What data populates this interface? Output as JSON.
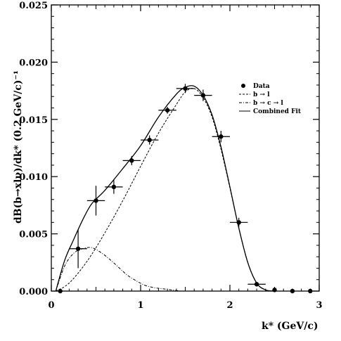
{
  "chart_data": {
    "type": "scatter",
    "title": "",
    "xlabel": "k* (GeV/c)",
    "ylabel": "dB(b→xlν)/dk* (0.2 GeV/c)⁻¹",
    "xlim": [
      0,
      3
    ],
    "ylim": [
      0,
      0.025
    ],
    "x_ticks": [
      0,
      1,
      2,
      3
    ],
    "x_tick_labels": [
      "0",
      "1",
      "2",
      "3"
    ],
    "y_ticks": [
      0,
      0.005,
      0.01,
      0.015,
      0.02,
      0.025
    ],
    "y_tick_labels": [
      "0.000",
      "0.005",
      "0.010",
      "0.015",
      "0.020",
      "0.025"
    ],
    "grid": false,
    "legend_position": "right",
    "series": [
      {
        "name": "Data",
        "style": "points",
        "points": [
          {
            "x": 0.1,
            "y": 0.0,
            "xerr": 0.0,
            "yerr": 0.0
          },
          {
            "x": 0.3,
            "y": 0.0037,
            "xerr": 0.1,
            "yerr": 0.0017
          },
          {
            "x": 0.5,
            "y": 0.0079,
            "xerr": 0.1,
            "yerr": 0.0013
          },
          {
            "x": 0.7,
            "y": 0.0091,
            "xerr": 0.1,
            "yerr": 0.0006
          },
          {
            "x": 0.9,
            "y": 0.0114,
            "xerr": 0.1,
            "yerr": 0.0004
          },
          {
            "x": 1.1,
            "y": 0.0132,
            "xerr": 0.1,
            "yerr": 0.0004
          },
          {
            "x": 1.3,
            "y": 0.0158,
            "xerr": 0.1,
            "yerr": 0.0003
          },
          {
            "x": 1.5,
            "y": 0.0177,
            "xerr": 0.1,
            "yerr": 0.0004
          },
          {
            "x": 1.7,
            "y": 0.0171,
            "xerr": 0.1,
            "yerr": 0.0005
          },
          {
            "x": 1.9,
            "y": 0.0135,
            "xerr": 0.1,
            "yerr": 0.0005
          },
          {
            "x": 2.1,
            "y": 0.006,
            "xerr": 0.1,
            "yerr": 0.0004
          },
          {
            "x": 2.3,
            "y": 0.0006,
            "xerr": 0.1,
            "yerr": 0.0002
          },
          {
            "x": 2.5,
            "y": 0.0001,
            "xerr": 0.0,
            "yerr": 0.0
          },
          {
            "x": 2.7,
            "y": 0.0,
            "xerr": 0.0,
            "yerr": 0.0
          },
          {
            "x": 2.9,
            "y": 0.0,
            "xerr": 0.0,
            "yerr": 0.0
          }
        ]
      },
      {
        "name": "b → l",
        "style": "dashed",
        "x": [
          0.05,
          0.2,
          0.4,
          0.6,
          0.8,
          1.0,
          1.2,
          1.4,
          1.5,
          1.6,
          1.7,
          1.8,
          1.9,
          2.0,
          2.1,
          2.2,
          2.3,
          2.4,
          2.5
        ],
        "y": [
          0.0,
          0.0007,
          0.0026,
          0.0051,
          0.0079,
          0.0109,
          0.0138,
          0.0163,
          0.0174,
          0.0177,
          0.0169,
          0.0152,
          0.0124,
          0.009,
          0.0055,
          0.0025,
          0.0007,
          0.0001,
          0.0
        ]
      },
      {
        "name": "b → c → l",
        "style": "dashdot",
        "x": [
          0.05,
          0.15,
          0.25,
          0.35,
          0.45,
          0.55,
          0.65,
          0.75,
          0.85,
          0.95,
          1.05,
          1.15,
          1.25,
          1.35,
          1.45
        ],
        "y": [
          0.0,
          0.0022,
          0.0033,
          0.0037,
          0.0038,
          0.0034,
          0.0028,
          0.0021,
          0.0014,
          0.0009,
          0.0005,
          0.0003,
          0.0002,
          0.0001,
          0.0
        ]
      },
      {
        "name": "Combined Fit",
        "style": "solid",
        "x": [
          0.05,
          0.15,
          0.25,
          0.35,
          0.45,
          0.6,
          0.8,
          1.0,
          1.2,
          1.4,
          1.5,
          1.6,
          1.7,
          1.8,
          1.9,
          2.0,
          2.1,
          2.2,
          2.3,
          2.4,
          2.5
        ],
        "y": [
          0.0,
          0.0027,
          0.0045,
          0.0062,
          0.0076,
          0.0088,
          0.0107,
          0.0127,
          0.0152,
          0.0172,
          0.0178,
          0.0179,
          0.0171,
          0.0154,
          0.0126,
          0.0091,
          0.0055,
          0.0025,
          0.0007,
          0.0001,
          0.0
        ]
      }
    ],
    "legend": [
      {
        "label": "Data",
        "marker": "dot"
      },
      {
        "label": "b → l",
        "marker": "dashed"
      },
      {
        "label": "b → c → l",
        "marker": "dashdot"
      },
      {
        "label": "Combined Fit",
        "marker": "solid"
      }
    ]
  }
}
